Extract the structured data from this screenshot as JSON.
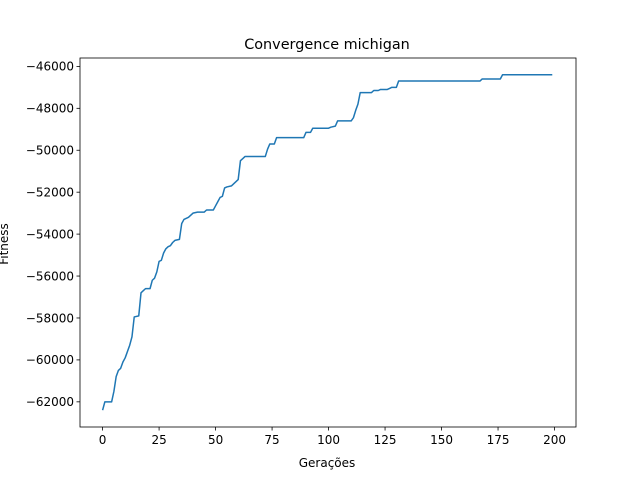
{
  "chart_data": {
    "type": "line",
    "title": "Convergence michigan",
    "xlabel": "Gerações",
    "ylabel": "Fitness",
    "xlim": [
      -10,
      209.5
    ],
    "ylim": [
      -63200,
      -45600
    ],
    "xticks": [
      0,
      25,
      50,
      75,
      100,
      125,
      150,
      175,
      200
    ],
    "yticks": [
      -62000,
      -60000,
      -58000,
      -56000,
      -54000,
      -52000,
      -50000,
      -48000,
      -46000
    ],
    "xtick_labels": [
      "0",
      "25",
      "50",
      "75",
      "100",
      "125",
      "150",
      "175",
      "200"
    ],
    "ytick_labels": [
      "−62000",
      "−60000",
      "−58000",
      "−56000",
      "−54000",
      "−52000",
      "−50000",
      "−48000",
      "−46000"
    ],
    "grid": false,
    "series": [
      {
        "color": "#1f77b4",
        "points": [
          [
            0,
            -62400
          ],
          [
            1,
            -62000
          ],
          [
            4,
            -62000
          ],
          [
            5,
            -61500
          ],
          [
            6,
            -60800
          ],
          [
            7,
            -60500
          ],
          [
            8,
            -60400
          ],
          [
            9,
            -60100
          ],
          [
            10,
            -59900
          ],
          [
            11,
            -59600
          ],
          [
            12,
            -59300
          ],
          [
            13,
            -58900
          ],
          [
            14,
            -57950
          ],
          [
            16,
            -57900
          ],
          [
            17,
            -56800
          ],
          [
            18,
            -56700
          ],
          [
            19,
            -56600
          ],
          [
            21,
            -56600
          ],
          [
            22,
            -56200
          ],
          [
            23,
            -56100
          ],
          [
            24,
            -55800
          ],
          [
            25,
            -55300
          ],
          [
            26,
            -55250
          ],
          [
            27,
            -54900
          ],
          [
            28,
            -54700
          ],
          [
            29,
            -54600
          ],
          [
            30,
            -54550
          ],
          [
            31,
            -54400
          ],
          [
            32,
            -54300
          ],
          [
            34,
            -54250
          ],
          [
            35,
            -53500
          ],
          [
            36,
            -53300
          ],
          [
            38,
            -53200
          ],
          [
            40,
            -53000
          ],
          [
            42,
            -52950
          ],
          [
            45,
            -52950
          ],
          [
            46,
            -52850
          ],
          [
            49,
            -52850
          ],
          [
            50,
            -52650
          ],
          [
            51,
            -52450
          ],
          [
            52,
            -52250
          ],
          [
            53,
            -52200
          ],
          [
            54,
            -51800
          ],
          [
            55,
            -51750
          ],
          [
            57,
            -51700
          ],
          [
            58,
            -51600
          ],
          [
            60,
            -51400
          ],
          [
            61,
            -50500
          ],
          [
            62,
            -50400
          ],
          [
            63,
            -50300
          ],
          [
            72,
            -50300
          ],
          [
            73,
            -49950
          ],
          [
            74,
            -49700
          ],
          [
            76,
            -49700
          ],
          [
            77,
            -49400
          ],
          [
            89,
            -49400
          ],
          [
            90,
            -49150
          ],
          [
            92,
            -49150
          ],
          [
            93,
            -48950
          ],
          [
            100,
            -48950
          ],
          [
            101,
            -48900
          ],
          [
            103,
            -48850
          ],
          [
            104,
            -48600
          ],
          [
            110,
            -48600
          ],
          [
            111,
            -48450
          ],
          [
            112,
            -48100
          ],
          [
            113,
            -47800
          ],
          [
            114,
            -47250
          ],
          [
            119,
            -47250
          ],
          [
            120,
            -47150
          ],
          [
            122,
            -47150
          ],
          [
            123,
            -47100
          ],
          [
            126,
            -47100
          ],
          [
            127,
            -47050
          ],
          [
            128,
            -47000
          ],
          [
            130,
            -47000
          ],
          [
            131,
            -46700
          ],
          [
            167,
            -46700
          ],
          [
            168,
            -46600
          ],
          [
            176,
            -46600
          ],
          [
            177,
            -46400
          ],
          [
            199,
            -46400
          ]
        ]
      }
    ]
  }
}
